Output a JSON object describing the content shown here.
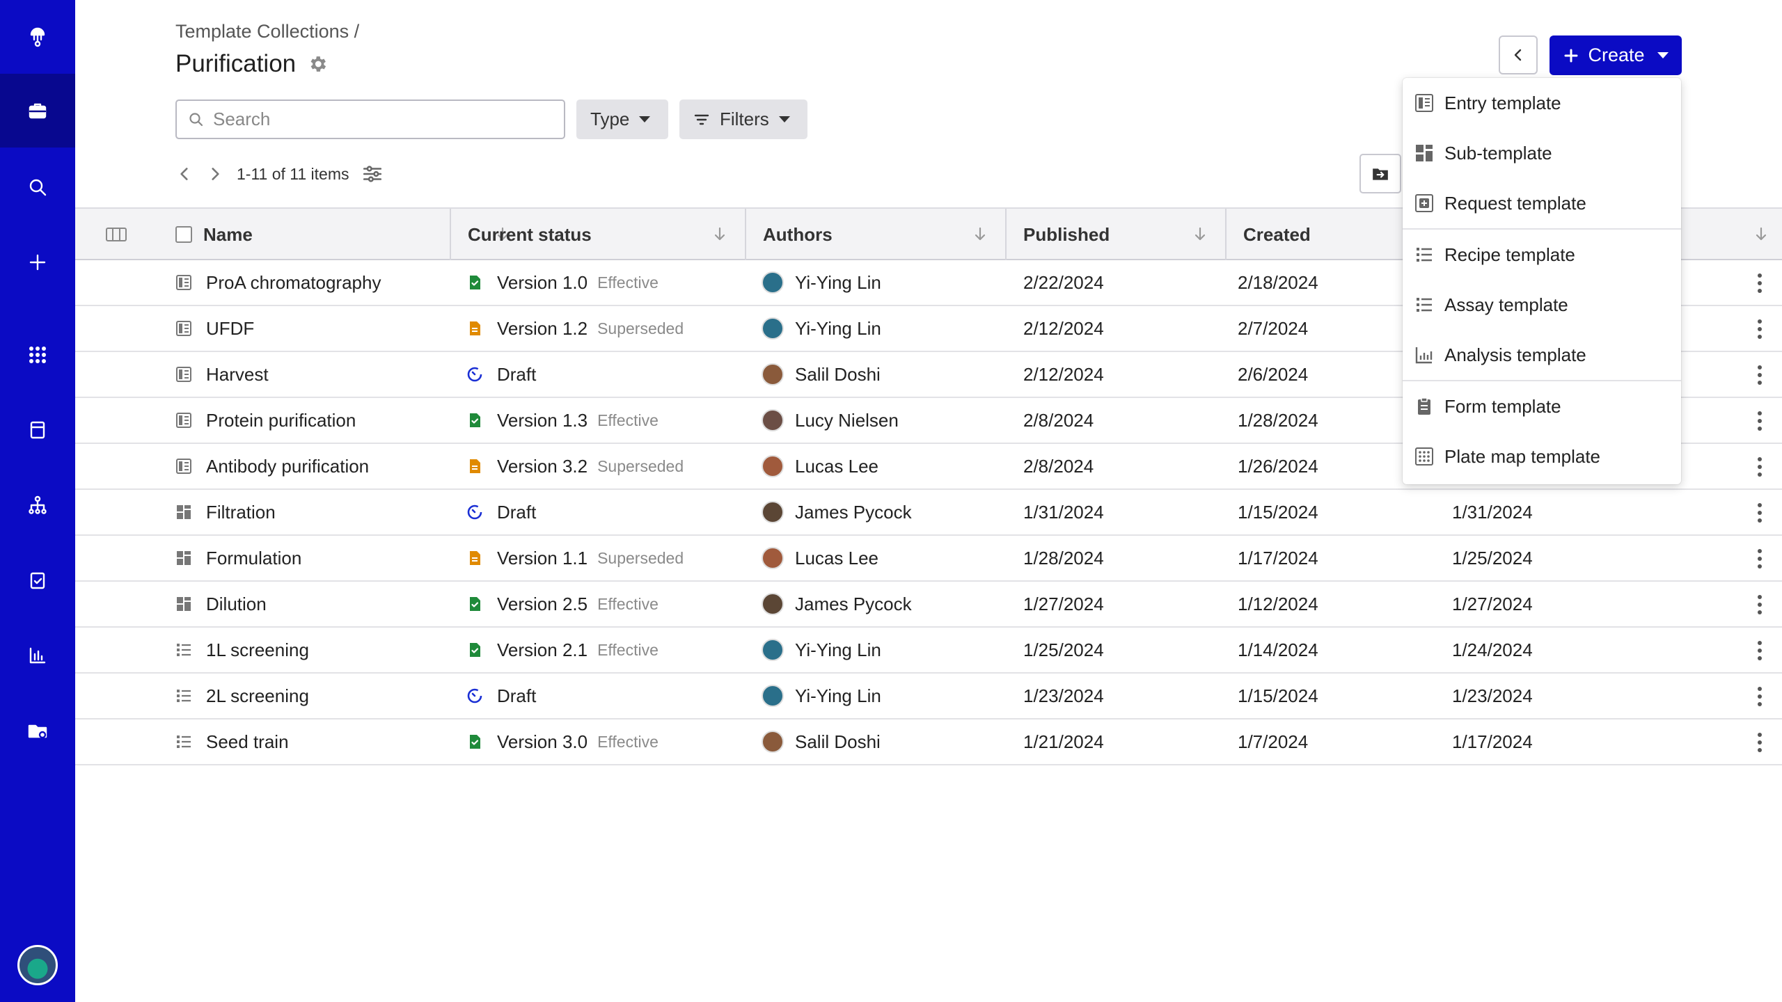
{
  "header": {
    "breadcrumb": "Template Collections /",
    "title": "Purification"
  },
  "toolbar": {
    "search_placeholder": "Search",
    "type_label": "Type",
    "filters_label": "Filters",
    "create_label": "Create"
  },
  "pager": {
    "label": "1-11 of 11 items"
  },
  "table": {
    "columns": [
      "Name",
      "Current status",
      "Authors",
      "Published",
      "Created"
    ],
    "rows": [
      {
        "name": "ProA chromatography",
        "kind": "entry",
        "status": "Version 1.0",
        "status_sub": "Effective",
        "status_kind": "effective",
        "author": "Yi-Ying Lin",
        "avatar": "#2a6f8a",
        "published": "2/22/2024",
        "created": "2/18/2024",
        "modified": ""
      },
      {
        "name": "UFDF",
        "kind": "entry",
        "status": "Version 1.2",
        "status_sub": "Superseded",
        "status_kind": "superseded",
        "author": "Yi-Ying Lin",
        "avatar": "#2a6f8a",
        "published": "2/12/2024",
        "created": "2/7/2024",
        "modified": ""
      },
      {
        "name": "Harvest",
        "kind": "entry",
        "status": "Draft",
        "status_sub": "",
        "status_kind": "draft",
        "author": "Salil Doshi",
        "avatar": "#8a5a3b",
        "published": "2/12/2024",
        "created": "2/6/2024",
        "modified": ""
      },
      {
        "name": "Protein purification",
        "kind": "entry",
        "status": "Version 1.3",
        "status_sub": "Effective",
        "status_kind": "effective",
        "author": "Lucy Nielsen",
        "avatar": "#6b4e45",
        "published": "2/8/2024",
        "created": "1/28/2024",
        "modified": ""
      },
      {
        "name": "Antibody purification",
        "kind": "entry",
        "status": "Version 3.2",
        "status_sub": "Superseded",
        "status_kind": "superseded",
        "author": "Lucas Lee",
        "avatar": "#a05a3c",
        "published": "2/8/2024",
        "created": "1/26/2024",
        "modified": ""
      },
      {
        "name": "Filtration",
        "kind": "sub",
        "status": "Draft",
        "status_sub": "",
        "status_kind": "draft",
        "author": "James Pycock",
        "avatar": "#5b4635",
        "published": "1/31/2024",
        "created": "1/15/2024",
        "modified": "1/31/2024"
      },
      {
        "name": "Formulation",
        "kind": "sub",
        "status": "Version 1.1",
        "status_sub": "Superseded",
        "status_kind": "superseded",
        "author": "Lucas Lee",
        "avatar": "#a05a3c",
        "published": "1/28/2024",
        "created": "1/17/2024",
        "modified": "1/25/2024"
      },
      {
        "name": "Dilution",
        "kind": "sub",
        "status": "Version 2.5",
        "status_sub": "Effective",
        "status_kind": "effective",
        "author": "James Pycock",
        "avatar": "#5b4635",
        "published": "1/27/2024",
        "created": "1/12/2024",
        "modified": "1/27/2024"
      },
      {
        "name": "1L screening",
        "kind": "list",
        "status": "Version 2.1",
        "status_sub": "Effective",
        "status_kind": "effective",
        "author": "Yi-Ying Lin",
        "avatar": "#2a6f8a",
        "published": "1/25/2024",
        "created": "1/14/2024",
        "modified": "1/24/2024"
      },
      {
        "name": "2L screening",
        "kind": "list",
        "status": "Draft",
        "status_sub": "",
        "status_kind": "draft",
        "author": "Yi-Ying Lin",
        "avatar": "#2a6f8a",
        "published": "1/23/2024",
        "created": "1/15/2024",
        "modified": "1/23/2024"
      },
      {
        "name": "Seed train",
        "kind": "list",
        "status": "Version 3.0",
        "status_sub": "Effective",
        "status_kind": "effective",
        "author": "Salil Doshi",
        "avatar": "#8a5a3b",
        "published": "1/21/2024",
        "created": "1/7/2024",
        "modified": "1/17/2024"
      }
    ]
  },
  "create_menu": {
    "items": [
      {
        "label": "Entry template",
        "icon": "entry-template-icon"
      },
      {
        "label": "Sub-template",
        "icon": "sub-template-icon"
      },
      {
        "label": "Request template",
        "icon": "request-template-icon"
      },
      {
        "label": "Recipe template",
        "icon": "recipe-template-icon"
      },
      {
        "label": "Assay template",
        "icon": "assay-template-icon"
      },
      {
        "label": "Analysis template",
        "icon": "analysis-template-icon"
      },
      {
        "label": "Form template",
        "icon": "form-template-icon"
      },
      {
        "label": "Plate map template",
        "icon": "plate-map-template-icon"
      }
    ]
  },
  "colors": {
    "sidebar": "#0b0bc4",
    "sidebar_active": "#08088f",
    "primary": "#0b0bc4",
    "effective": "#1f8a3a",
    "superseded": "#e08a00",
    "draft": "#1a2fd4"
  }
}
